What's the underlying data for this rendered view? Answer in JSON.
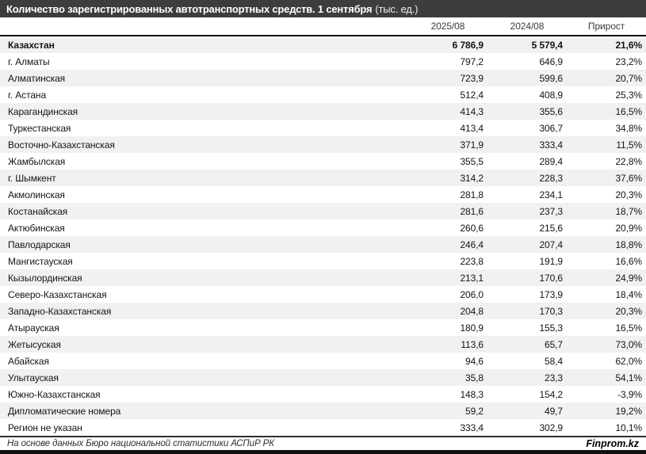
{
  "title": {
    "main": "Количество зарегистрированных автотранспортных средств. 1 сентября",
    "unit": "(тыс. ед.)"
  },
  "chart_data": {
    "type": "table",
    "title": "Количество зарегистрированных автотранспортных средств. 1 сентября (тыс. ед.)",
    "columns": [
      "2025/08",
      "2024/08",
      "Прирост"
    ],
    "rows": [
      {
        "region": "Казахстан",
        "values": [
          "6 786,9",
          "5 579,4",
          "21,6%"
        ],
        "is_total": true
      },
      {
        "region": "г. Алматы",
        "values": [
          "797,2",
          "646,9",
          "23,2%"
        ]
      },
      {
        "region": "Алматинская",
        "values": [
          "723,9",
          "599,6",
          "20,7%"
        ]
      },
      {
        "region": "г. Астана",
        "values": [
          "512,4",
          "408,9",
          "25,3%"
        ]
      },
      {
        "region": "Карагандинская",
        "values": [
          "414,3",
          "355,6",
          "16,5%"
        ]
      },
      {
        "region": "Туркестанская",
        "values": [
          "413,4",
          "306,7",
          "34,8%"
        ]
      },
      {
        "region": "Восточно-Казахстанская",
        "values": [
          "371,9",
          "333,4",
          "11,5%"
        ]
      },
      {
        "region": "Жамбылская",
        "values": [
          "355,5",
          "289,4",
          "22,8%"
        ]
      },
      {
        "region": "г. Шымкент",
        "values": [
          "314,2",
          "228,3",
          "37,6%"
        ]
      },
      {
        "region": "Акмолинская",
        "values": [
          "281,8",
          "234,1",
          "20,3%"
        ]
      },
      {
        "region": "Костанайская",
        "values": [
          "281,6",
          "237,3",
          "18,7%"
        ]
      },
      {
        "region": "Актюбинская",
        "values": [
          "260,6",
          "215,6",
          "20,9%"
        ]
      },
      {
        "region": "Павлодарская",
        "values": [
          "246,4",
          "207,4",
          "18,8%"
        ]
      },
      {
        "region": "Мангистауская",
        "values": [
          "223,8",
          "191,9",
          "16,6%"
        ]
      },
      {
        "region": "Кызылординская",
        "values": [
          "213,1",
          "170,6",
          "24,9%"
        ]
      },
      {
        "region": "Северо-Казахстанская",
        "values": [
          "206,0",
          "173,9",
          "18,4%"
        ]
      },
      {
        "region": "Западно-Казахстанская",
        "values": [
          "204,8",
          "170,3",
          "20,3%"
        ]
      },
      {
        "region": "Атырауская",
        "values": [
          "180,9",
          "155,3",
          "16,5%"
        ]
      },
      {
        "region": "Жетысуская",
        "values": [
          "113,6",
          "65,7",
          "73,0%"
        ]
      },
      {
        "region": "Абайская",
        "values": [
          "94,6",
          "58,4",
          "62,0%"
        ]
      },
      {
        "region": "Улытауская",
        "values": [
          "35,8",
          "23,3",
          "54,1%"
        ]
      },
      {
        "region": "Южно-Казахстанская",
        "values": [
          "148,3",
          "154,2",
          "-3,9%"
        ]
      },
      {
        "region": "Дипломатические номера",
        "values": [
          "59,2",
          "49,7",
          "19,2%"
        ]
      },
      {
        "region": "Регион не указан",
        "values": [
          "333,4",
          "302,9",
          "10,1%"
        ]
      }
    ]
  },
  "footer": {
    "source": "На основе данных Бюро национальной статистики АСПиР РК",
    "brand": "Finprom.kz"
  },
  "colors": {
    "title_bar_bg": "#3d3d3d",
    "stripe_bg": "#f1f1f1",
    "rule_color": "#141414",
    "text_color": "#141414",
    "header_text": "#3c3c3c"
  }
}
